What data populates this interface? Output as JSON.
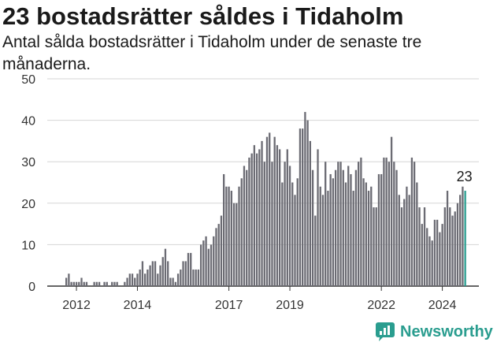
{
  "header": {
    "title": "23 bostadsrätter såldes i Tidaholm",
    "subtitle": "Antal sålda bostadsrätter i Tidaholm under de senaste tre månaderna."
  },
  "brand": {
    "name": "Newsworthy",
    "icon": "newsworthy-logo-icon",
    "color": "#2a9d8f"
  },
  "colors": {
    "bar": "#6b6b73",
    "highlight": "#2a9d8f",
    "grid": "#d6d6d6",
    "axis": "#333333"
  },
  "chart_data": {
    "type": "bar",
    "title": "23 bostadsrätter såldes i Tidaholm",
    "subtitle": "Antal sålda bostadsrätter i Tidaholm under de senaste tre månaderna.",
    "xlabel": "",
    "ylabel": "",
    "ylim": [
      0,
      50
    ],
    "yticks": [
      0,
      10,
      20,
      30,
      40,
      50
    ],
    "xticks": [
      "2012",
      "2014",
      "2017",
      "2019",
      "2022",
      "2024"
    ],
    "grid": true,
    "x_start": "2011-09",
    "x_end": "2024-09",
    "highlight_last": true,
    "last_value_label": "23",
    "values": [
      2,
      3,
      1,
      1,
      1,
      1,
      2,
      1,
      1,
      0,
      0,
      1,
      1,
      1,
      0,
      1,
      1,
      0,
      1,
      1,
      1,
      0,
      0,
      1,
      2,
      3,
      3,
      2,
      3,
      4,
      6,
      3,
      4,
      5,
      6,
      6,
      3,
      5,
      7,
      9,
      6,
      2,
      2,
      1,
      3,
      4,
      6,
      6,
      8,
      8,
      4,
      4,
      4,
      10,
      11,
      12,
      9,
      10,
      12,
      14,
      15,
      17,
      27,
      24,
      24,
      23,
      20,
      20,
      24,
      26,
      29,
      28,
      31,
      32,
      34,
      32,
      33,
      35,
      30,
      36,
      37,
      30,
      36,
      34,
      33,
      25,
      30,
      33,
      29,
      25,
      22,
      26,
      38,
      38,
      42,
      40,
      35,
      28,
      17,
      33,
      24,
      22,
      30,
      23,
      27,
      26,
      28,
      30,
      30,
      28,
      25,
      29,
      27,
      23,
      28,
      30,
      31,
      26,
      25,
      23,
      24,
      19,
      19,
      27,
      27,
      31,
      31,
      30,
      36,
      30,
      28,
      22,
      19,
      21,
      24,
      22,
      31,
      30,
      25,
      19,
      15,
      19,
      14,
      12,
      11,
      16,
      16,
      13,
      15,
      19,
      23,
      19,
      17,
      18,
      20,
      22,
      24,
      23
    ]
  }
}
